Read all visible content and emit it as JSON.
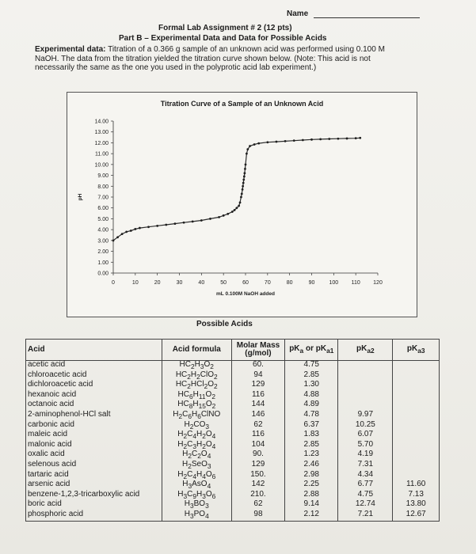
{
  "header": {
    "name_label": "Name",
    "title_line1": "Formal Lab Assignment # 2 (12 pts)",
    "title_line2": "Part B – Experimental Data and Data for Possible Acids"
  },
  "experimental": {
    "label": "Experimental data:",
    "text_line1": " Titration of a 0.366 g sample of an unknown acid was performed using 0.100 M",
    "text_line2": "NaOH. The data from the titration yielded the titration curve shown below. (Note: This acid is not",
    "text_line3": "necessarily the same as the one you used in the polyprotic acid lab experiment.)"
  },
  "chart_data": {
    "type": "line",
    "title": "Titration Curve of a Sample of an Unknown Acid",
    "xlabel": "mL 0.100M NaOH added",
    "ylabel": "pH",
    "xlim": [
      0,
      120
    ],
    "ylim": [
      0,
      14
    ],
    "x_ticks": [
      "0",
      "10",
      "20",
      "30",
      "40",
      "50",
      "60",
      "70",
      "80",
      "90",
      "100",
      "110",
      "120"
    ],
    "y_ticks": [
      "0.00",
      "1.00",
      "2.00",
      "3.00",
      "4.00",
      "5.00",
      "6.00",
      "7.00",
      "8.00",
      "9.00",
      "10.00",
      "11.00",
      "12.00",
      "13.00",
      "14.00"
    ],
    "grid": false,
    "series": [
      {
        "x": [
          0,
          2,
          4,
          6,
          8,
          10,
          12,
          16,
          20,
          24,
          28,
          32,
          36,
          40,
          44,
          48,
          50,
          52,
          54,
          55,
          56,
          57,
          57.5,
          58,
          58.3,
          58.6,
          58.8,
          59,
          59.2,
          59.4,
          59.6,
          59.8,
          60,
          60.5,
          61,
          62,
          64,
          66,
          70,
          74,
          78,
          82,
          86,
          90,
          94,
          98,
          102,
          106,
          110,
          112
        ],
        "y": [
          3.0,
          3.3,
          3.6,
          3.8,
          3.9,
          4.05,
          4.15,
          4.25,
          4.35,
          4.45,
          4.55,
          4.65,
          4.75,
          4.85,
          5.0,
          5.15,
          5.3,
          5.45,
          5.65,
          5.8,
          6.0,
          6.2,
          6.5,
          7.0,
          7.3,
          7.7,
          8.0,
          8.3,
          8.6,
          8.9,
          9.2,
          9.6,
          10.0,
          11.0,
          11.4,
          11.7,
          11.85,
          11.95,
          12.05,
          12.1,
          12.15,
          12.2,
          12.25,
          12.3,
          12.33,
          12.36,
          12.38,
          12.4,
          12.42,
          12.45
        ]
      }
    ]
  },
  "possible_acids": {
    "heading": "Possible Acids",
    "headers": {
      "acid": "Acid",
      "formula": "Acid formula",
      "molar_mass": "Molar Mass (g/mol)",
      "pk1_html": "pK<sub>a</sub> or pK<sub>a1</sub>",
      "pk2_html": "pK<sub>a2</sub>",
      "pk3_html": "pK<sub>a3</sub>"
    },
    "rows": [
      {
        "name": "acetic acid",
        "formula_html": "HC<sub>2</sub>H<sub>3</sub>O<sub>2</sub>",
        "mm": "60.",
        "pk1": "4.75",
        "pk2": "",
        "pk3": ""
      },
      {
        "name": "chloroacetic acid",
        "formula_html": "HC<sub>2</sub>H<sub>2</sub>ClO<sub>2</sub>",
        "mm": "94",
        "pk1": "2.85",
        "pk2": "",
        "pk3": ""
      },
      {
        "name": "dichloroacetic acid",
        "formula_html": "HC<sub>2</sub>HCl<sub>2</sub>O<sub>2</sub>",
        "mm": "129",
        "pk1": "1.30",
        "pk2": "",
        "pk3": ""
      },
      {
        "name": "hexanoic acid",
        "formula_html": "HC<sub>6</sub>H<sub>11</sub>O<sub>2</sub>",
        "mm": "116",
        "pk1": "4.88",
        "pk2": "",
        "pk3": ""
      },
      {
        "name": "octanoic acid",
        "formula_html": "HC<sub>8</sub>H<sub>15</sub>O<sub>2</sub>",
        "mm": "144",
        "pk1": "4.89",
        "pk2": "",
        "pk3": ""
      },
      {
        "name": "2-aminophenol-HCl salt",
        "formula_html": "H<sub>2</sub>C<sub>6</sub>H<sub>6</sub>ClNO",
        "mm": "146",
        "pk1": "4.78",
        "pk2": "9.97",
        "pk3": ""
      },
      {
        "name": "carbonic acid",
        "formula_html": "H<sub>2</sub>CO<sub>3</sub>",
        "mm": "62",
        "pk1": "6.37",
        "pk2": "10.25",
        "pk3": ""
      },
      {
        "name": "maleic acid",
        "formula_html": "H<sub>2</sub>C<sub>4</sub>H<sub>2</sub>O<sub>4</sub>",
        "mm": "116",
        "pk1": "1.83",
        "pk2": "6.07",
        "pk3": ""
      },
      {
        "name": "malonic acid",
        "formula_html": "H<sub>2</sub>C<sub>3</sub>H<sub>2</sub>O<sub>4</sub>",
        "mm": "104",
        "pk1": "2.85",
        "pk2": "5.70",
        "pk3": ""
      },
      {
        "name": "oxalic acid",
        "formula_html": "H<sub>2</sub>C<sub>2</sub>O<sub>4</sub>",
        "mm": "90.",
        "pk1": "1.23",
        "pk2": "4.19",
        "pk3": ""
      },
      {
        "name": "selenous acid",
        "formula_html": "H<sub>2</sub>SeO<sub>3</sub>",
        "mm": "129",
        "pk1": "2.46",
        "pk2": "7.31",
        "pk3": ""
      },
      {
        "name": "tartaric acid",
        "formula_html": "H<sub>2</sub>C<sub>4</sub>H<sub>4</sub>O<sub>6</sub>",
        "mm": "150.",
        "pk1": "2.98",
        "pk2": "4.34",
        "pk3": ""
      },
      {
        "name": "arsenic acid",
        "formula_html": "H<sub>3</sub>AsO<sub>4</sub>",
        "mm": "142",
        "pk1": "2.25",
        "pk2": "6.77",
        "pk3": "11.60"
      },
      {
        "name": "benzene-1,2,3-tricarboxylic acid",
        "formula_html": "H<sub>3</sub>C<sub>9</sub>H<sub>3</sub>O<sub>6</sub>",
        "mm": "210.",
        "pk1": "2.88",
        "pk2": "4.75",
        "pk3": "7.13"
      },
      {
        "name": "boric acid",
        "formula_html": "H<sub>3</sub>BO<sub>3</sub>",
        "mm": "62",
        "pk1": "9.14",
        "pk2": "12.74",
        "pk3": "13.80"
      },
      {
        "name": "phosphoric acid",
        "formula_html": "H<sub>3</sub>PO<sub>4</sub>",
        "mm": "98",
        "pk1": "2.12",
        "pk2": "7.21",
        "pk3": "12.67"
      }
    ]
  }
}
